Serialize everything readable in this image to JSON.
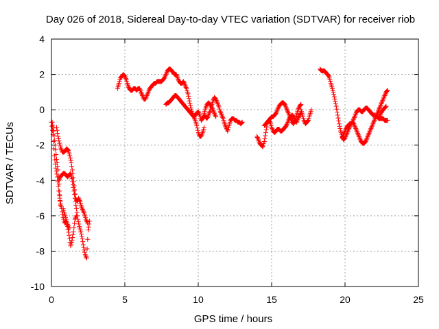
{
  "chart_data": {
    "type": "scatter",
    "title": "Day 026 of 2018, Sidereal Day-to-day VTEC variation (SDTVAR) for receiver riob",
    "xlabel": "GPS time / hours",
    "ylabel": "SDTVAR / TECUs",
    "xlim": [
      0,
      25
    ],
    "ylim": [
      -10,
      4
    ],
    "xticks": [
      0,
      5,
      10,
      15,
      20,
      25
    ],
    "yticks": [
      -10,
      -8,
      -6,
      -4,
      -2,
      0,
      2,
      4
    ],
    "grid": true,
    "marker": "+",
    "color": "#ff0000",
    "series": [
      {
        "name": "seg1",
        "x": [
          0.0,
          0.1,
          0.2,
          0.3,
          0.4,
          0.5,
          0.6,
          0.7,
          0.8,
          0.9,
          1.0,
          1.1,
          1.2,
          1.3,
          1.4,
          1.5,
          1.6,
          1.7
        ],
        "y": [
          -0.7,
          -1.4,
          -2.6,
          -3.3,
          -3.8,
          -4.6,
          -5.2,
          -5.6,
          -6.1,
          -6.4,
          -6.3,
          -6.6,
          -7.1,
          -7.7,
          -7.4,
          -6.9,
          -6.2,
          -6.0
        ]
      },
      {
        "name": "seg2",
        "x": [
          0.05,
          0.15,
          0.25,
          0.35,
          0.45,
          0.55,
          0.6
        ],
        "y": [
          -0.7,
          -1.2,
          -2.0,
          -2.8,
          -3.4,
          -4.6,
          -5.4
        ]
      },
      {
        "name": "seg3",
        "x": [
          0.5,
          0.6,
          0.7,
          0.8,
          0.9,
          1.0,
          1.1,
          1.2,
          1.3,
          1.4,
          1.5,
          1.6,
          1.7,
          1.8,
          1.9,
          2.0,
          2.1,
          2.2,
          2.3,
          2.4,
          2.5,
          2.6
        ],
        "y": [
          -4.0,
          -3.8,
          -3.7,
          -3.6,
          -3.6,
          -3.7,
          -3.8,
          -3.7,
          -3.6,
          -3.9,
          -4.4,
          -5.0,
          -5.6,
          -6.2,
          -6.6,
          -6.9,
          -7.3,
          -7.8,
          -8.2,
          -8.4,
          -6.8,
          -6.3
        ]
      },
      {
        "name": "seg4",
        "x": [
          0.35,
          0.45,
          0.55,
          0.65,
          0.75,
          0.85,
          0.95,
          1.05,
          1.15,
          1.25,
          1.35,
          1.45,
          1.55,
          1.65,
          1.75,
          1.85,
          1.95,
          2.05,
          2.15,
          2.25,
          2.35,
          2.45
        ],
        "y": [
          -1.0,
          -1.5,
          -1.9,
          -2.2,
          -2.4,
          -2.4,
          -2.3,
          -2.2,
          -2.3,
          -2.6,
          -3.0,
          -3.6,
          -4.3,
          -5.0,
          -5.2,
          -5.0,
          -5.2,
          -5.5,
          -5.7,
          -5.9,
          -6.2,
          -6.4
        ]
      },
      {
        "name": "seg5",
        "x": [
          0.8,
          0.9,
          1.0,
          1.1,
          1.2
        ],
        "y": [
          -5.6,
          -5.9,
          -6.2,
          -6.5,
          -6.7
        ]
      },
      {
        "name": "seg6",
        "x": [
          4.5,
          4.6,
          4.7,
          4.8,
          4.9,
          5.0,
          5.1,
          5.2,
          5.3,
          5.4,
          5.5,
          5.6,
          5.7,
          5.8,
          5.9,
          6.0,
          6.1,
          6.2,
          6.3,
          6.4,
          6.5,
          6.6,
          6.7,
          6.8,
          6.9,
          7.0,
          7.1,
          7.2,
          7.3,
          7.4,
          7.5,
          7.6,
          7.7,
          7.8,
          7.9,
          8.0,
          8.1,
          8.2,
          8.3,
          8.4,
          8.5,
          8.6,
          8.7,
          8.8,
          8.9,
          9.0,
          9.1,
          9.2,
          9.3,
          9.4,
          9.5,
          9.6,
          9.7,
          9.8,
          9.9,
          10.0,
          10.1,
          10.2,
          10.3,
          10.4
        ],
        "y": [
          1.2,
          1.5,
          1.8,
          1.9,
          2.0,
          1.9,
          1.7,
          1.4,
          1.2,
          1.1,
          1.1,
          1.2,
          1.2,
          1.1,
          1.2,
          1.2,
          1.0,
          0.8,
          0.6,
          0.6,
          0.8,
          1.0,
          1.2,
          1.3,
          1.4,
          1.5,
          1.5,
          1.6,
          1.6,
          1.6,
          1.6,
          1.7,
          1.8,
          2.0,
          2.2,
          2.3,
          2.3,
          2.2,
          2.1,
          2.0,
          2.0,
          1.8,
          1.6,
          1.5,
          1.5,
          1.6,
          1.4,
          1.2,
          0.9,
          0.5,
          0.1,
          -0.2,
          -0.4,
          -0.6,
          -0.9,
          -1.3,
          -1.5,
          -1.5,
          -1.3,
          -1.0
        ]
      },
      {
        "name": "seg7",
        "x": [
          7.8,
          7.9,
          8.0,
          8.1,
          8.2,
          8.3,
          8.4,
          8.5,
          8.6,
          8.7,
          8.8,
          8.9,
          9.0,
          9.1,
          9.2,
          9.3,
          9.4,
          9.5,
          9.6,
          9.7,
          9.8,
          9.9,
          10.0,
          10.1,
          10.2,
          10.3,
          10.4,
          10.5,
          10.6,
          10.7,
          10.8,
          10.9,
          11.0,
          11.1,
          11.2,
          11.3,
          11.4,
          11.5,
          11.6,
          11.7,
          11.8,
          11.9,
          12.0,
          12.1,
          12.2,
          12.3,
          12.4,
          12.5,
          12.6,
          12.7,
          12.8,
          12.9,
          13.0
        ],
        "y": [
          0.3,
          0.4,
          0.4,
          0.5,
          0.6,
          0.7,
          0.8,
          0.8,
          0.7,
          0.6,
          0.5,
          0.4,
          0.3,
          0.2,
          0.1,
          0.0,
          -0.1,
          -0.2,
          -0.3,
          -0.4,
          -0.3,
          -0.2,
          -0.1,
          -0.3,
          -0.6,
          -0.5,
          -0.3,
          -0.4,
          -0.5,
          -0.3,
          -0.1,
          0.2,
          0.5,
          0.7,
          0.6,
          0.4,
          0.2,
          -0.1,
          -0.3,
          -0.5,
          -0.8,
          -1.0,
          -1.2,
          -0.9,
          -0.6,
          -0.5,
          -0.5,
          -0.6,
          -0.6,
          -0.7,
          -0.7,
          -0.8,
          -0.7
        ]
      },
      {
        "name": "seg8",
        "x": [
          10.4,
          10.5,
          10.6,
          10.7,
          10.8,
          10.9,
          11.0,
          11.1,
          11.2
        ],
        "y": [
          -0.2,
          0.1,
          0.3,
          0.4,
          0.3,
          0.2,
          0.0,
          -0.2,
          -0.4
        ]
      },
      {
        "name": "seg9",
        "x": [
          14.0,
          14.1,
          14.2,
          14.3,
          14.4,
          14.5,
          14.6,
          14.7,
          14.8,
          14.9,
          15.0,
          15.1,
          15.2,
          15.3,
          15.4,
          15.5,
          15.6,
          15.7,
          15.8,
          15.9,
          16.0,
          16.1,
          16.2,
          16.3,
          16.4,
          16.5,
          16.6,
          16.7,
          16.8,
          16.9,
          17.0
        ],
        "y": [
          -1.5,
          -1.7,
          -1.9,
          -2.0,
          -2.1,
          -1.8,
          -1.3,
          -0.8,
          -0.6,
          -0.7,
          -1.0,
          -1.2,
          -1.3,
          -1.2,
          -1.1,
          -1.1,
          -1.2,
          -1.2,
          -1.1,
          -1.0,
          -0.9,
          -0.7,
          -0.5,
          -0.4,
          -0.3,
          -0.4,
          -0.6,
          -0.7,
          -0.5,
          -0.3,
          -0.2
        ]
      },
      {
        "name": "seg10",
        "x": [
          14.5,
          14.6,
          14.7,
          14.8,
          14.9,
          15.0,
          15.1,
          15.2,
          15.3,
          15.4,
          15.5,
          15.6,
          15.7,
          15.8,
          15.9,
          16.0,
          16.1,
          16.2,
          16.3,
          16.4,
          16.5,
          16.6,
          16.7,
          16.8,
          16.9,
          17.0
        ],
        "y": [
          -0.9,
          -0.8,
          -0.7,
          -0.6,
          -0.5,
          -0.4,
          -0.4,
          -0.3,
          -0.2,
          0.0,
          0.2,
          0.3,
          0.4,
          0.4,
          0.3,
          0.1,
          -0.1,
          -0.3,
          -0.5,
          -0.7,
          -0.8,
          -0.6,
          -0.3,
          0.0,
          0.2,
          0.3
        ]
      },
      {
        "name": "seg11",
        "x": [
          17.0,
          17.1,
          17.2,
          17.3,
          17.4,
          17.5,
          17.6,
          17.7
        ],
        "y": [
          0.0,
          -0.3,
          -0.6,
          -0.8,
          -0.7,
          -0.6,
          -0.3,
          0.0
        ]
      },
      {
        "name": "seg12",
        "x": [
          18.3,
          18.4,
          18.5,
          18.6,
          18.7,
          18.8,
          18.9,
          19.0,
          19.1,
          19.2,
          19.3,
          19.4,
          19.5,
          19.6,
          19.7,
          19.8,
          19.9,
          20.0,
          20.1,
          20.2,
          20.3,
          20.4,
          20.5,
          20.6,
          20.7,
          20.8,
          20.9,
          21.0,
          21.1,
          21.2,
          21.3,
          21.4,
          21.5,
          21.6,
          21.7,
          21.8,
          21.9,
          22.0,
          22.1,
          22.2,
          22.3,
          22.4,
          22.5,
          22.6,
          22.7,
          22.8,
          22.9
        ],
        "y": [
          2.3,
          2.2,
          2.2,
          2.2,
          2.1,
          2.0,
          1.9,
          1.6,
          1.3,
          1.0,
          0.6,
          0.2,
          -0.3,
          -0.8,
          -1.2,
          -1.5,
          -1.7,
          -1.6,
          -1.4,
          -1.2,
          -1.0,
          -0.8,
          -0.7,
          -0.5,
          -0.3,
          -0.1,
          0.0,
          0.0,
          -0.1,
          -0.1,
          0.0,
          0.1,
          0.1,
          0.0,
          -0.1,
          -0.2,
          -0.3,
          -0.3,
          -0.4,
          -0.4,
          -0.5,
          -0.5,
          -0.5,
          -0.5,
          -0.6,
          -0.6,
          -0.6
        ]
      },
      {
        "name": "seg13",
        "x": [
          19.8,
          19.9,
          20.0,
          20.1,
          20.2,
          20.3,
          20.4,
          20.5,
          20.6,
          20.7,
          20.8,
          20.9,
          21.0,
          21.1,
          21.2,
          21.3,
          21.4,
          21.5,
          21.6,
          21.7,
          21.8,
          21.9,
          22.0,
          22.1,
          22.2,
          22.3,
          22.4,
          22.5,
          22.6,
          22.7,
          22.8,
          22.9
        ],
        "y": [
          -1.6,
          -1.4,
          -1.2,
          -1.0,
          -0.9,
          -0.8,
          -0.8,
          -0.7,
          -0.8,
          -1.0,
          -1.2,
          -1.4,
          -1.6,
          -1.8,
          -1.9,
          -1.9,
          -1.8,
          -1.6,
          -1.4,
          -1.2,
          -1.0,
          -0.8,
          -0.6,
          -0.4,
          -0.2,
          0.0,
          0.2,
          0.4,
          0.6,
          0.8,
          1.0,
          1.1
        ]
      },
      {
        "name": "seg14",
        "x": [
          22.3,
          22.4,
          22.5,
          22.6,
          22.7,
          22.8
        ],
        "y": [
          -0.5,
          -0.3,
          -0.1,
          0.0,
          0.1,
          0.2
        ]
      }
    ]
  }
}
